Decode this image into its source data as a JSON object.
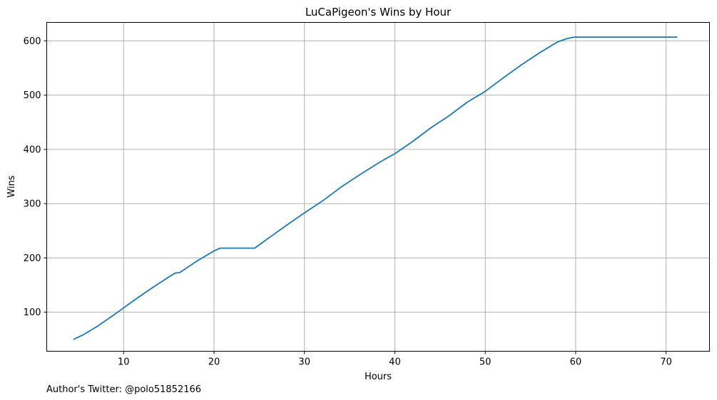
{
  "chart_data": {
    "type": "line",
    "title": "LuCaPigeon's Wins by Hour",
    "xlabel": "Hours",
    "ylabel": "Wins",
    "xlim": [
      1.5,
      74.8
    ],
    "ylim": [
      28,
      634
    ],
    "xticks": [
      10,
      20,
      30,
      40,
      50,
      60,
      70
    ],
    "yticks": [
      100,
      200,
      300,
      400,
      500,
      600
    ],
    "grid": true,
    "line_color": "#1f77b4",
    "series": [
      {
        "x": [
          4.5,
          5.5,
          7,
          9,
          11,
          13,
          15,
          15.7,
          16.2,
          18,
          20,
          20.7,
          22,
          24,
          24.5,
          25,
          26,
          28,
          30,
          32,
          34,
          36,
          38,
          39,
          40,
          42,
          44,
          46,
          48,
          50,
          52,
          54,
          56,
          58,
          59,
          59.8,
          62,
          65,
          68,
          71.2
        ],
        "y": [
          50,
          58,
          73,
          96,
          120,
          143,
          165,
          172,
          173,
          193,
          213,
          218,
          218,
          218,
          218,
          224,
          236,
          260,
          283,
          305,
          330,
          352,
          373,
          383,
          392,
          415,
          440,
          462,
          487,
          507,
          532,
          556,
          578,
          598,
          604,
          607,
          607,
          607,
          607,
          607
        ]
      }
    ]
  },
  "footer": {
    "text": "Author's Twitter: @polo51852166"
  }
}
